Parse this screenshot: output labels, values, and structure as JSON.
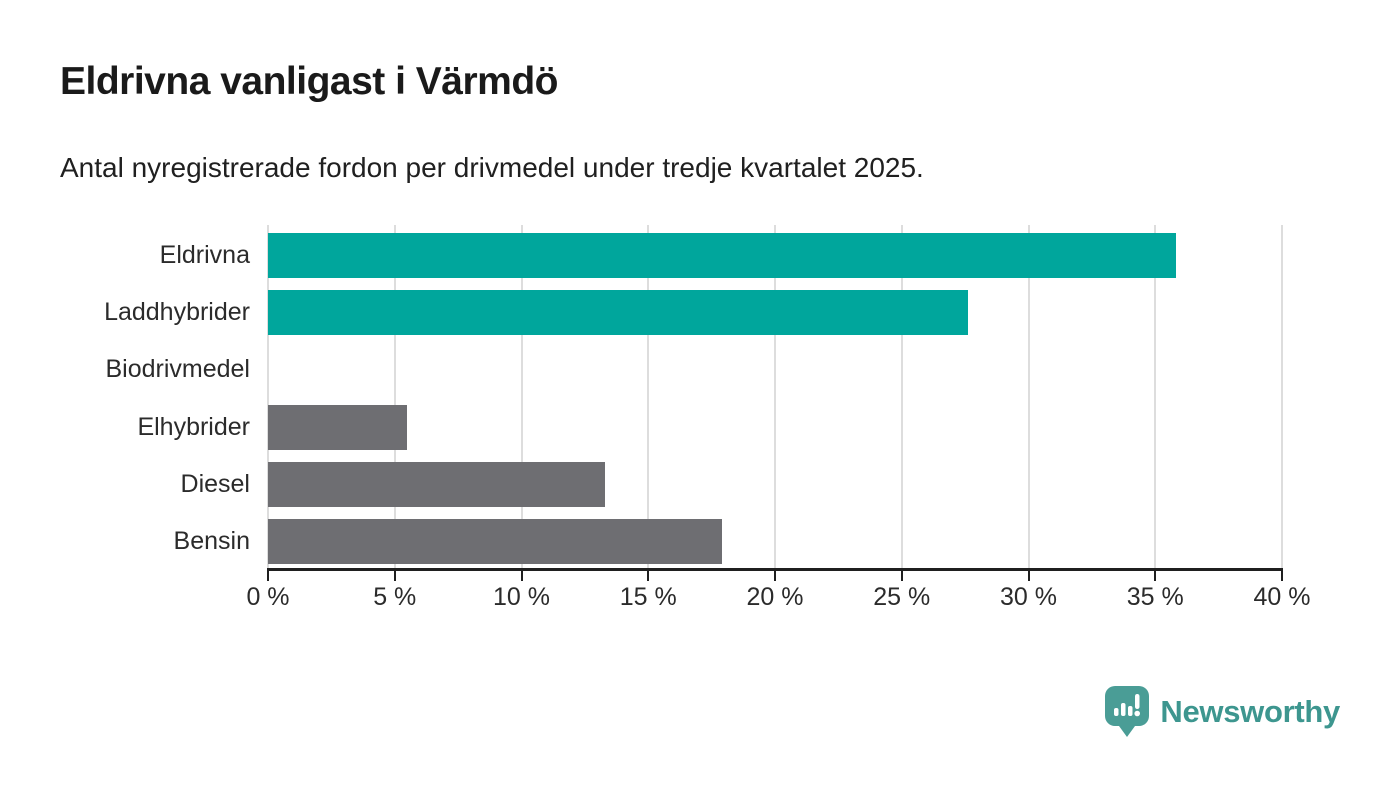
{
  "header": {
    "title": "Eldrivna vanligast i Värmdö",
    "subtitle": "Antal nyregistrerade fordon per drivmedel under tredje kvartalet 2025."
  },
  "chart_data": {
    "type": "bar",
    "orientation": "horizontal",
    "title": "Eldrivna vanligast i Värmdö",
    "subtitle": "Antal nyregistrerade fordon per drivmedel under tredje kvartalet 2025.",
    "categories": [
      "Eldrivna",
      "Laddhybrider",
      "Biodrivmedel",
      "Elhybrider",
      "Diesel",
      "Bensin"
    ],
    "values": [
      35.8,
      27.6,
      0,
      5.5,
      13.3,
      17.9
    ],
    "unit": "%",
    "bar_colors": [
      "#00a69c",
      "#00a69c",
      "#6e6e72",
      "#6e6e72",
      "#6e6e72",
      "#6e6e72"
    ],
    "xlabel": "",
    "ylabel": "",
    "xlim": [
      0,
      40
    ],
    "x_ticks": [
      0,
      5,
      10,
      15,
      20,
      25,
      30,
      35,
      40
    ],
    "x_tick_labels": [
      "0 %",
      "5 %",
      "10 %",
      "15 %",
      "20 %",
      "25 %",
      "30 %",
      "35 %",
      "40 %"
    ],
    "grid": "vertical",
    "legend": "none"
  },
  "colors": {
    "highlight": "#00a69c",
    "muted": "#6e6e72",
    "axis": "#1f1f1f",
    "gridline": "#dddddd",
    "brand": "#3d968f"
  },
  "footer": {
    "brand": "Newsworthy",
    "logo_icon": "bar-chart-speech-bubble-icon"
  }
}
